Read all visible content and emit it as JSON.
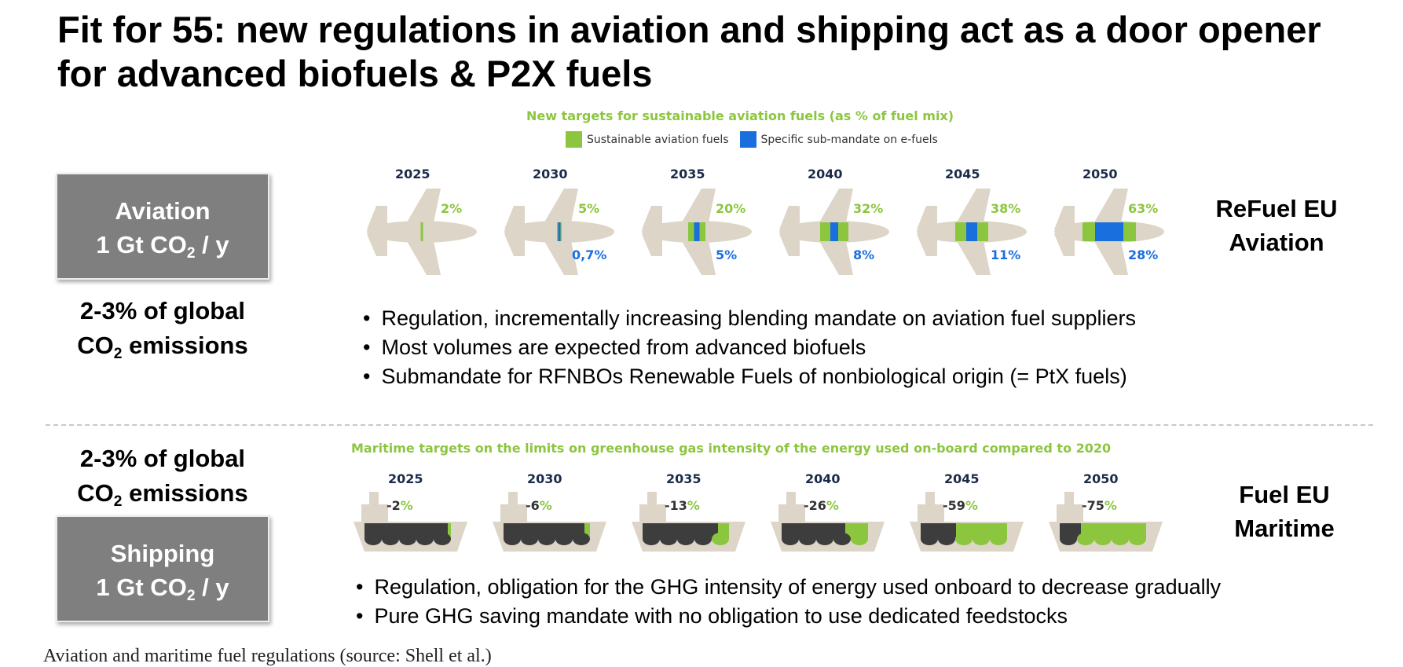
{
  "title": "Fit for 55: new regulations in aviation and shipping act as a door opener for advanced biofuels & P2X fuels",
  "colors": {
    "green": "#8cc63f",
    "blue": "#1a6fde",
    "plane": "#ddd5c7",
    "hull": "#3d3d3d",
    "ship": "#ddd5c7"
  },
  "aviation": {
    "box_line1": "Aviation",
    "box_line2_a": "1 Gt CO",
    "box_line2_sub": "2",
    "box_line2_b": " / y",
    "stat_line1": "2-3% of global",
    "stat_line2_a": "CO",
    "stat_line2_sub": "2",
    "stat_line2_b": " emissions",
    "chart_title": "New targets for sustainable aviation fuels (as % of fuel mix)",
    "legend_green": "Sustainable aviation fuels",
    "legend_blue": "Specific sub-mandate on e-fuels",
    "icon": "airplane-icon",
    "targets": [
      {
        "year": "2025",
        "saf": "2",
        "efuel": ""
      },
      {
        "year": "2030",
        "saf": "5",
        "efuel": "0,7"
      },
      {
        "year": "2035",
        "saf": "20",
        "efuel": "5"
      },
      {
        "year": "2040",
        "saf": "32",
        "efuel": "8"
      },
      {
        "year": "2045",
        "saf": "38",
        "efuel": "11"
      },
      {
        "year": "2050",
        "saf": "63",
        "efuel": "28"
      }
    ],
    "right_label_1": "ReFuel EU",
    "right_label_2": "Aviation",
    "bullets": [
      "Regulation, incrementally increasing blending mandate on aviation fuel suppliers",
      "Most volumes are expected from advanced biofuels",
      "Submandate for RFNBOs Renewable Fuels of nonbiological origin (= PtX fuels)"
    ]
  },
  "shipping": {
    "stat_line1": "2-3% of global",
    "stat_line2_a": "CO",
    "stat_line2_sub": "2",
    "stat_line2_b": " emissions",
    "box_line1": "Shipping",
    "box_line2_a": "1 Gt CO",
    "box_line2_sub": "2",
    "box_line2_b": " / y",
    "chart_title": "Maritime targets on the limits on greenhouse gas intensity of the energy used on-board compared to 2020",
    "icon": "ship-icon",
    "targets": [
      {
        "year": "2025",
        "reduction": "-2",
        "fraction": 0.02
      },
      {
        "year": "2030",
        "reduction": "-6",
        "fraction": 0.06
      },
      {
        "year": "2035",
        "reduction": "-13",
        "fraction": 0.13
      },
      {
        "year": "2040",
        "reduction": "-26",
        "fraction": 0.26
      },
      {
        "year": "2045",
        "reduction": "-59",
        "fraction": 0.59
      },
      {
        "year": "2050",
        "reduction": "-75",
        "fraction": 0.75
      }
    ],
    "right_label_1": "Fuel EU",
    "right_label_2": "Maritime",
    "bullets": [
      "Regulation, obligation for the GHG intensity of energy used onboard to decrease gradually",
      "Pure GHG saving mandate with no obligation to use dedicated feedstocks"
    ]
  },
  "caption": "Aviation and maritime fuel regulations (source: Shell et al.)"
}
